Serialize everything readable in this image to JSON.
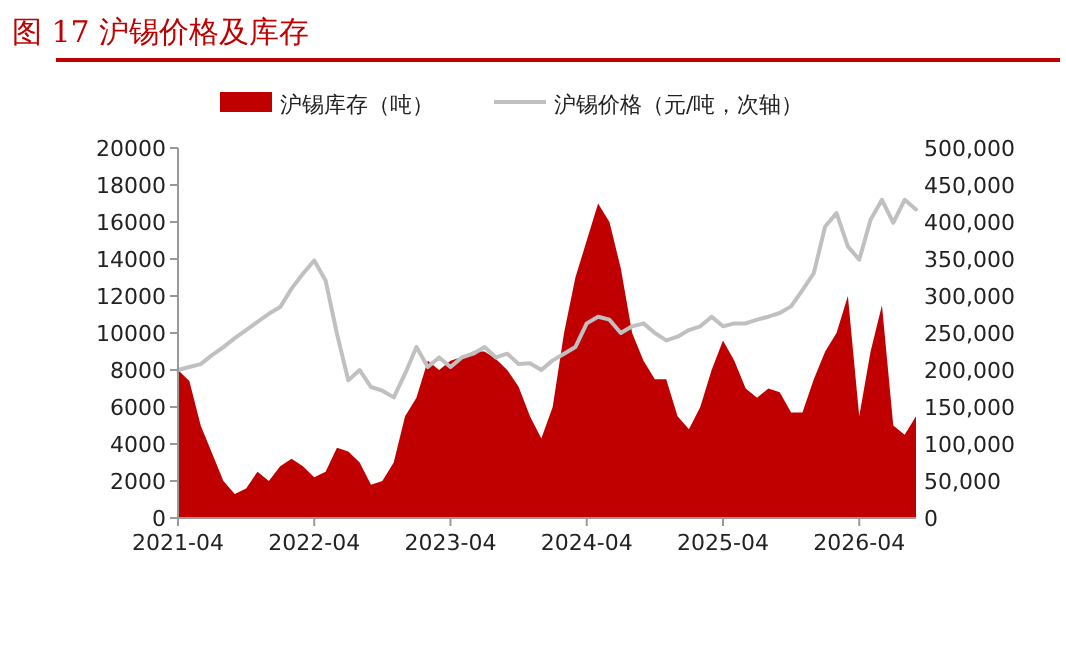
{
  "chart_data": {
    "type": "area",
    "title": "图 17  沪锡价格及库存",
    "x": [
      "2021-04",
      "2021-05",
      "2021-06",
      "2021-07",
      "2021-08",
      "2021-09",
      "2021-10",
      "2021-11",
      "2021-12",
      "2022-01",
      "2022-02",
      "2022-03",
      "2022-04",
      "2022-05",
      "2022-06",
      "2022-07",
      "2022-08",
      "2022-09",
      "2022-10",
      "2022-11",
      "2022-12",
      "2023-01",
      "2023-02",
      "2023-03",
      "2023-04",
      "2023-05",
      "2023-06",
      "2023-07",
      "2023-08",
      "2023-09",
      "2023-10",
      "2023-11",
      "2023-12",
      "2024-01",
      "2024-02",
      "2024-03",
      "2024-04",
      "2024-05",
      "2024-06",
      "2024-07",
      "2024-08",
      "2024-09",
      "2024-10",
      "2024-11",
      "2024-12",
      "2025-01",
      "2025-02",
      "2025-03",
      "2025-04",
      "2025-05",
      "2025-06",
      "2025-07",
      "2025-08",
      "2025-09",
      "2025-10",
      "2025-11",
      "2025-12",
      "2026-01",
      "2026-02",
      "2026-03",
      "2026-04",
      "2026-05",
      "2026-06",
      "2026-07",
      "2026-08",
      "2026-09"
    ],
    "series": [
      {
        "name": "沪锡库存（吨）",
        "color": "#c00000",
        "values": [
          8000,
          7400,
          5000,
          3500,
          2000,
          1300,
          1600,
          2500,
          2000,
          2800,
          3200,
          2800,
          2200,
          2500,
          3800,
          3600,
          3000,
          1800,
          2000,
          3000,
          5500,
          6500,
          8500,
          8000,
          8500,
          8700,
          9000,
          9000,
          8600,
          8000,
          7100,
          5500,
          4300,
          6000,
          10000,
          13000,
          15000,
          17000,
          16000,
          13500,
          10000,
          8500,
          7500,
          7500,
          5500,
          4800,
          6000,
          8000,
          9600,
          8500,
          7000,
          6500,
          7000,
          6800,
          5700,
          5700,
          7500,
          9000,
          10000,
          12000,
          5500,
          9000,
          11500,
          5000,
          4500,
          5500
        ]
      },
      {
        "name": "沪锡价格（元/吨，次轴）",
        "type": "line",
        "axis": "y2",
        "color": "#c0c0c0",
        "values": [
          200000,
          204000,
          208000,
          220000,
          231000,
          243000,
          254000,
          265000,
          276000,
          285000,
          310000,
          330000,
          348000,
          321000,
          249000,
          186000,
          200000,
          177000,
          172000,
          163000,
          195000,
          231000,
          204000,
          217000,
          204000,
          217000,
          222000,
          231000,
          217000,
          222000,
          208000,
          209000,
          200000,
          213000,
          222000,
          231000,
          263000,
          272000,
          268000,
          250000,
          259000,
          263000,
          250000,
          240000,
          245000,
          254000,
          259000,
          272000,
          259000,
          263000,
          263000,
          268000,
          272000,
          277000,
          286000,
          308000,
          331000,
          394000,
          412000,
          367000,
          349000,
          403000,
          430000,
          399000,
          430000,
          417000
        ]
      }
    ],
    "xlim": [
      "2021-04",
      "2026-09"
    ],
    "xticks": [
      {
        "value": "2021-04",
        "label": "2021-04"
      },
      {
        "value": "2022-04",
        "label": "2022-04"
      },
      {
        "value": "2023-04",
        "label": "2023-04"
      },
      {
        "value": "2024-04",
        "label": "2024-04"
      },
      {
        "value": "2025-04",
        "label": "2025-04"
      },
      {
        "value": "2026-04",
        "label": "2026-04"
      }
    ],
    "ylim": [
      0,
      20000
    ],
    "yticks": [
      0,
      2000,
      4000,
      6000,
      8000,
      10000,
      12000,
      14000,
      16000,
      18000,
      20000
    ],
    "y2lim": [
      0,
      500000
    ],
    "y2ticks": [
      {
        "value": 0,
        "label": "0"
      },
      {
        "value": 50000,
        "label": "50,000"
      },
      {
        "value": 100000,
        "label": "100,000"
      },
      {
        "value": 150000,
        "label": "150,000"
      },
      {
        "value": 200000,
        "label": "200,000"
      },
      {
        "value": 250000,
        "label": "250,000"
      },
      {
        "value": 300000,
        "label": "300,000"
      },
      {
        "value": 350000,
        "label": "350,000"
      },
      {
        "value": 400000,
        "label": "400,000"
      },
      {
        "value": 450000,
        "label": "450,000"
      },
      {
        "value": 500000,
        "label": "500,000"
      }
    ],
    "legend": "top",
    "grid": false
  }
}
